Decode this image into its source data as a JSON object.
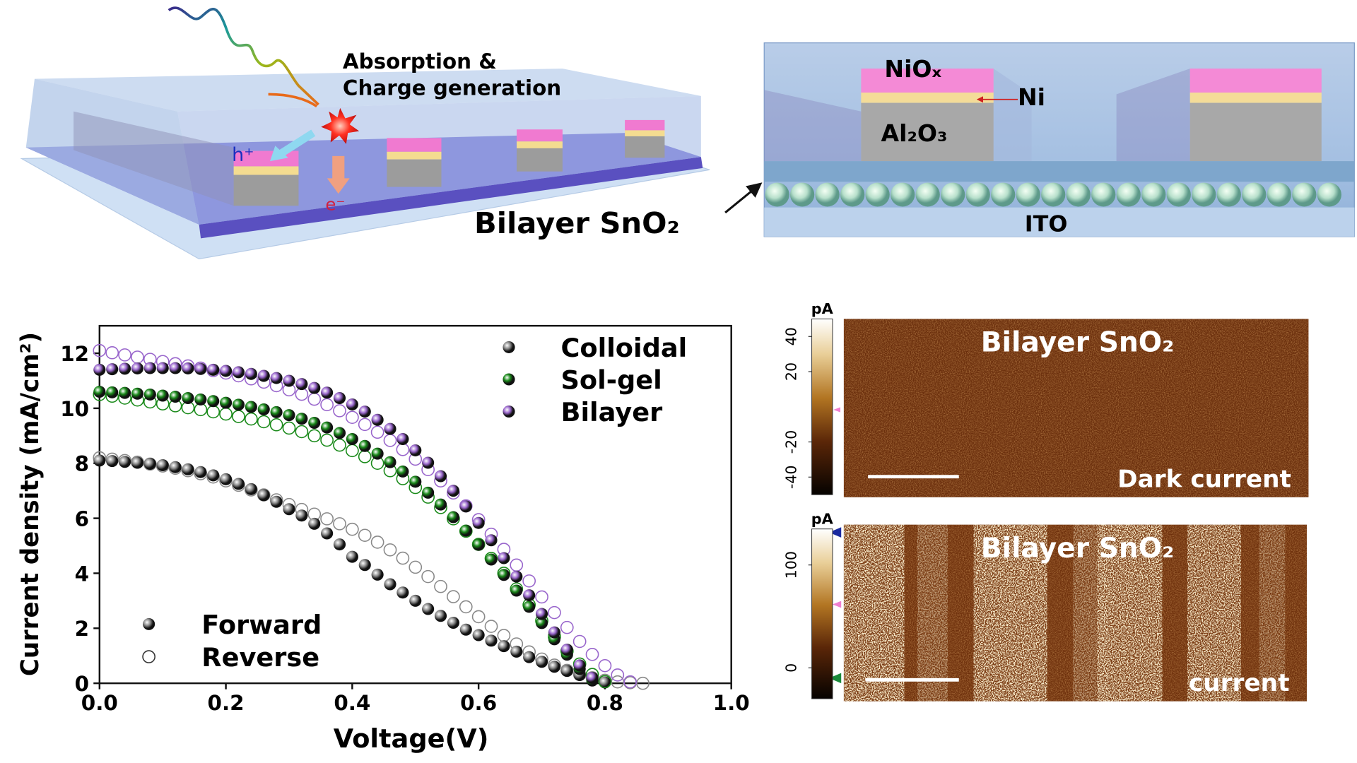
{
  "schematic": {
    "absorption": [
      "Absorption &",
      "Charge generation"
    ],
    "hole": "h⁺",
    "electron": "e⁻",
    "etl": "Bilayer SnO₂",
    "cross_section": {
      "nio": "NiOₓ",
      "ni": "Ni",
      "al2o3": "Al₂O₃",
      "ito": "ITO"
    }
  },
  "chart_data": {
    "type": "scatter",
    "xlabel": "Voltage(V)",
    "ylabel": "Current density (mA/cm²)",
    "xlim": [
      0,
      1
    ],
    "ylim": [
      0,
      13
    ],
    "xticks": [
      {
        "value": 0,
        "label": "0.0"
      },
      {
        "value": 0.2,
        "label": "0.2"
      },
      {
        "value": 0.4,
        "label": "0.4"
      },
      {
        "value": 0.6,
        "label": "0.6"
      },
      {
        "value": 0.8,
        "label": "0.8"
      },
      {
        "value": 1,
        "label": "1.0"
      }
    ],
    "yticks": [
      0,
      2,
      4,
      6,
      8,
      10,
      12
    ],
    "scan_labels": [
      "Forward",
      "Reverse"
    ],
    "x": [
      0,
      0.02,
      0.04,
      0.06,
      0.08,
      0.1,
      0.12,
      0.14,
      0.16,
      0.18,
      0.2,
      0.22,
      0.24,
      0.26,
      0.28,
      0.3,
      0.32,
      0.34,
      0.36,
      0.38,
      0.4,
      0.42,
      0.44,
      0.46,
      0.48,
      0.5,
      0.52,
      0.54,
      0.56,
      0.58,
      0.6,
      0.62,
      0.64,
      0.66,
      0.68,
      0.7,
      0.72,
      0.74,
      0.76,
      0.78,
      0.8,
      0.82,
      0.84,
      0.86,
      0.88
    ],
    "series": [
      {
        "name": "Colloidal",
        "color": "#8a8a8a",
        "forward": [
          8.1,
          8.08,
          8.05,
          8.02,
          7.98,
          7.93,
          7.86,
          7.78,
          7.68,
          7.56,
          7.42,
          7.25,
          7.06,
          6.84,
          6.6,
          6.33,
          6.1,
          5.8,
          5.45,
          5.05,
          4.6,
          4.3,
          3.95,
          3.6,
          3.3,
          3.0,
          2.7,
          2.45,
          2.2,
          1.95,
          1.75,
          1.55,
          1.35,
          1.15,
          0.95,
          0.78,
          0.6,
          0.45,
          0.3,
          0.15,
          0.03,
          null,
          null,
          null,
          null
        ],
        "reverse": [
          8.2,
          8.15,
          8.1,
          8.04,
          7.97,
          7.9,
          7.82,
          7.73,
          7.62,
          7.5,
          7.36,
          7.2,
          7.03,
          6.85,
          6.67,
          6.5,
          6.32,
          6.15,
          5.98,
          5.8,
          5.6,
          5.38,
          5.13,
          4.85,
          4.55,
          4.22,
          3.88,
          3.52,
          3.15,
          2.78,
          2.42,
          2.07,
          1.74,
          1.43,
          1.14,
          0.88,
          0.66,
          0.47,
          0.32,
          0.2,
          0.11,
          0.05,
          0.02,
          0,
          null
        ]
      },
      {
        "name": "Sol-gel",
        "color": "#1a8a1a",
        "forward": [
          10.6,
          10.58,
          10.56,
          10.53,
          10.5,
          10.46,
          10.42,
          10.37,
          10.32,
          10.26,
          10.2,
          10.13,
          10.05,
          9.96,
          9.86,
          9.75,
          9.62,
          9.47,
          9.3,
          9.1,
          8.88,
          8.63,
          8.35,
          8.04,
          7.7,
          7.33,
          6.93,
          6.5,
          6.04,
          5.55,
          5.04,
          4.5,
          3.94,
          3.37,
          2.78,
          2.19,
          1.6,
          1.04,
          0.52,
          0.1,
          null,
          null,
          null,
          null,
          null
        ],
        "reverse": [
          10.5,
          10.44,
          10.37,
          10.3,
          10.23,
          10.16,
          10.09,
          10.02,
          9.95,
          9.87,
          9.79,
          9.7,
          9.61,
          9.51,
          9.4,
          9.28,
          9.15,
          9.0,
          8.84,
          8.66,
          8.46,
          8.24,
          8.0,
          7.73,
          7.44,
          7.12,
          6.77,
          6.39,
          5.98,
          5.53,
          5.05,
          4.54,
          4.0,
          3.43,
          2.85,
          2.27,
          1.7,
          1.17,
          0.7,
          0.32,
          0.06,
          null,
          null,
          null,
          null
        ]
      },
      {
        "name": "Bilayer",
        "color": "#9966cc",
        "forward": [
          11.4,
          11.42,
          11.44,
          11.45,
          11.46,
          11.46,
          11.46,
          11.45,
          11.43,
          11.4,
          11.36,
          11.31,
          11.25,
          11.18,
          11.1,
          11.0,
          10.88,
          10.74,
          10.57,
          10.37,
          10.14,
          9.88,
          9.58,
          9.25,
          8.88,
          8.47,
          8.02,
          7.53,
          7.0,
          6.43,
          5.83,
          5.2,
          4.55,
          3.88,
          3.2,
          2.52,
          1.85,
          1.22,
          0.65,
          0.2,
          null,
          null,
          null,
          null,
          null
        ],
        "reverse": [
          12.1,
          12.02,
          11.94,
          11.86,
          11.78,
          11.7,
          11.62,
          11.54,
          11.46,
          11.37,
          11.28,
          11.18,
          11.07,
          10.95,
          10.82,
          10.67,
          10.51,
          10.33,
          10.13,
          9.91,
          9.67,
          9.41,
          9.13,
          8.83,
          8.5,
          8.15,
          7.77,
          7.36,
          6.92,
          6.45,
          5.95,
          5.42,
          4.87,
          4.3,
          3.72,
          3.14,
          2.57,
          2.03,
          1.52,
          1.05,
          0.64,
          0.3,
          0.05,
          null,
          null
        ]
      }
    ]
  },
  "afm": [
    {
      "unit": "pA",
      "lim": [
        -50,
        50
      ],
      "ticks": [
        40,
        20,
        -20,
        -40
      ],
      "title": "Bilayer SnO₂",
      "label": "Dark current"
    },
    {
      "unit": "pA",
      "lim": [
        -30,
        135
      ],
      "ticks": [
        100,
        0
      ],
      "title": "Bilayer SnO₂",
      "label": "current"
    }
  ]
}
